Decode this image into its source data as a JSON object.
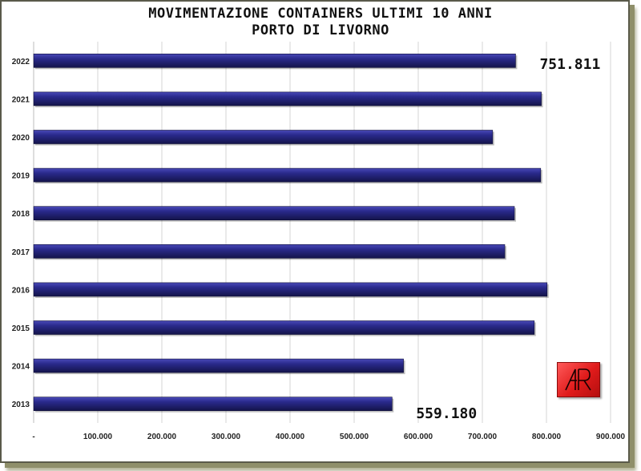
{
  "chart_data": {
    "type": "bar",
    "orientation": "horizontal",
    "title": "MOVIMENTAZIONE CONTAINERS ULTIMI 10 ANNI",
    "subtitle": "PORTO DI LIVORNO",
    "categories": [
      "2022",
      "2021",
      "2020",
      "2019",
      "2018",
      "2017",
      "2016",
      "2015",
      "2014",
      "2013"
    ],
    "values": [
      751811,
      792000,
      716000,
      791000,
      750000,
      735000,
      801000,
      781000,
      577000,
      559180
    ],
    "xlim": [
      0,
      900000
    ],
    "x_ticks": [
      "-",
      "100.000",
      "200.000",
      "300.000",
      "400.000",
      "500.000",
      "600.000",
      "700.000",
      "800.000",
      "900.000"
    ],
    "grid": "vertical",
    "bar_color": "#23236e",
    "annotations": [
      {
        "category": "2022",
        "text": "751.811"
      },
      {
        "category": "2013",
        "text": "559.180"
      }
    ]
  },
  "logo": {
    "text": "AR",
    "color": "#e01b1b"
  }
}
